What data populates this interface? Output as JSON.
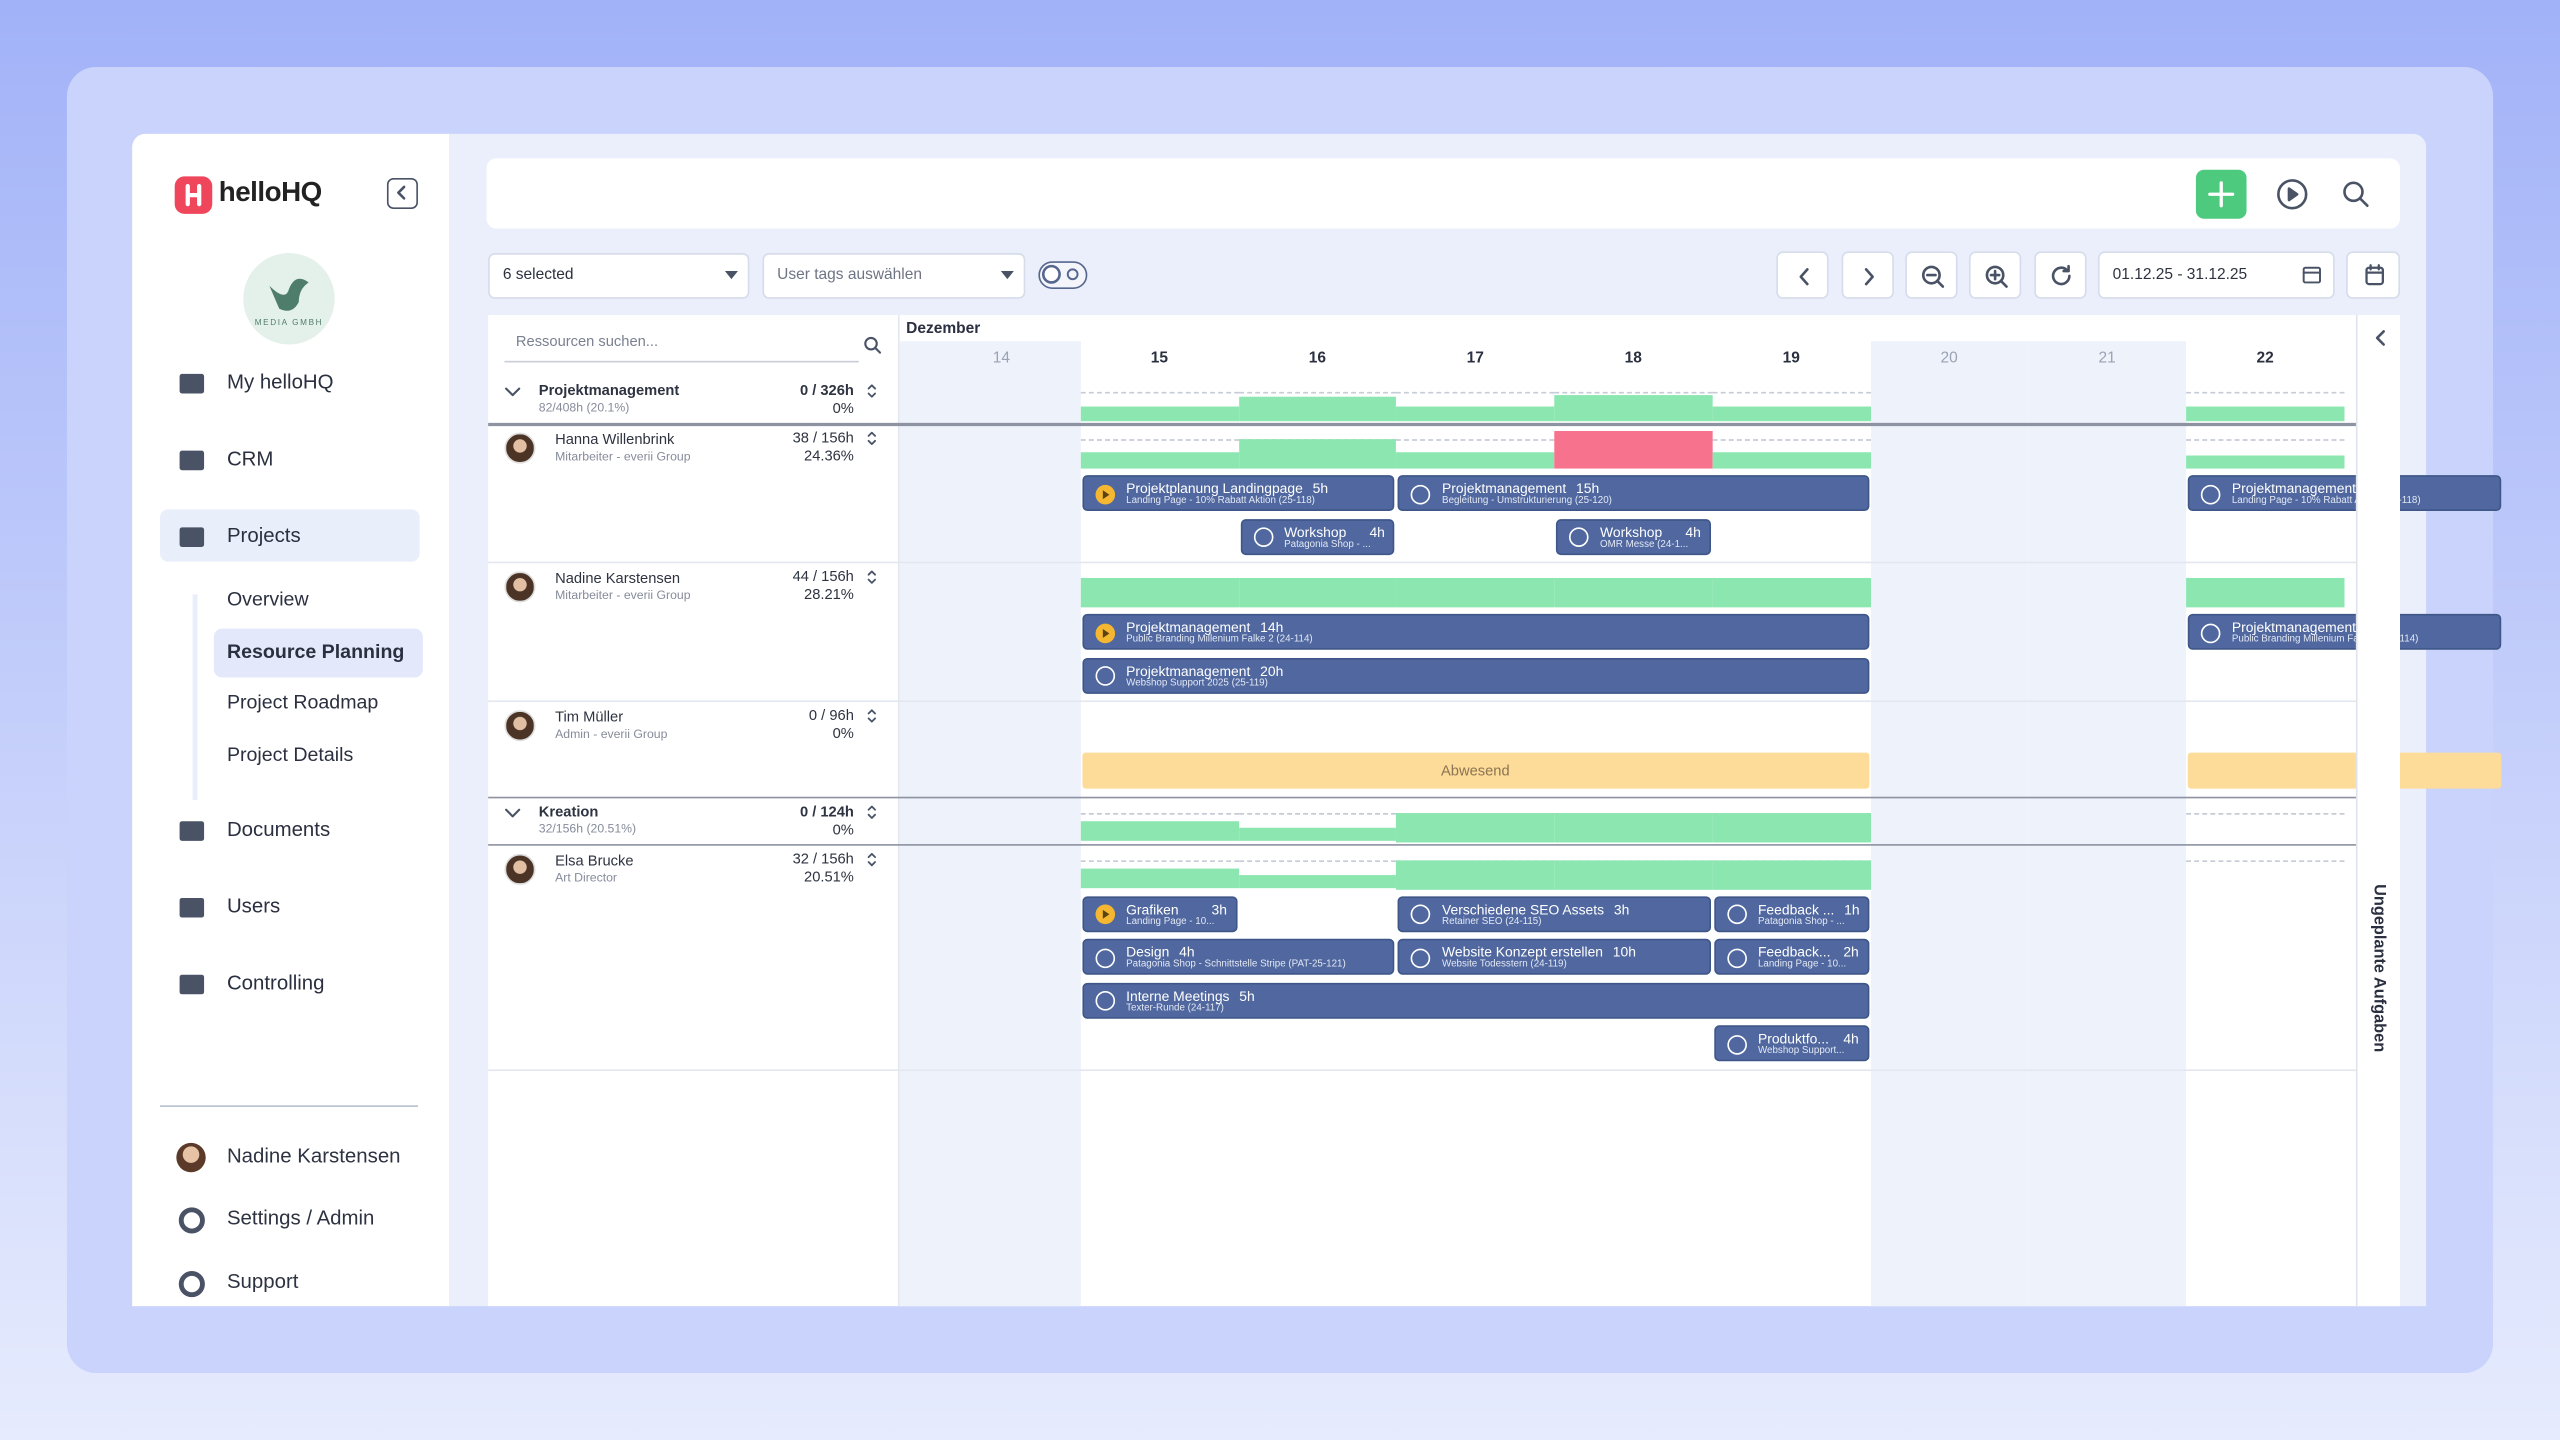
{
  "sidebar": {
    "brand": "helloHQ",
    "company_logo": "MEDIA GMBH",
    "nav": [
      {
        "label": "My helloHQ"
      },
      {
        "label": "CRM"
      },
      {
        "label": "Projects",
        "active": true,
        "children": [
          {
            "label": "Overview"
          },
          {
            "label": "Resource Planning",
            "active": true
          },
          {
            "label": "Project Roadmap"
          },
          {
            "label": "Project Details"
          }
        ]
      },
      {
        "label": "Documents"
      },
      {
        "label": "Users"
      },
      {
        "label": "Controlling"
      }
    ],
    "user": "Nadine Karstensen",
    "footer": [
      "Settings / Admin",
      "Support"
    ]
  },
  "toolbar": {
    "resource_filter": "6 selected",
    "tag_filter": "User tags auswählen",
    "date_range": "01.12.25 - 31.12.25"
  },
  "planner": {
    "search_placeholder": "Ressourcen suchen...",
    "month": "Dezember",
    "side_panel": "Ungeplante Aufgaben",
    "days": [
      {
        "label": "14",
        "weekend": true
      },
      {
        "label": "15"
      },
      {
        "label": "16"
      },
      {
        "label": "17"
      },
      {
        "label": "18"
      },
      {
        "label": "19"
      },
      {
        "label": "20",
        "weekend": true
      },
      {
        "label": "21",
        "weekend": true
      },
      {
        "label": "22"
      }
    ],
    "rows": [
      {
        "kind": "group",
        "name": "Projektmanagement",
        "summary": "82/408h (20.1%)",
        "hours": "0 / 326h",
        "percent": "0%",
        "load": [
          null,
          0.5,
          0.85,
          0.5,
          0.9,
          0.5,
          null,
          null,
          0.5
        ]
      },
      {
        "kind": "person",
        "name": "Hanna Willenbrink",
        "role": "Mitarbeiter - everii Group",
        "hours": "38 / 156h",
        "percent": "24.36%",
        "load": [
          null,
          0.55,
          1.0,
          0.55,
          1.3,
          0.55,
          null,
          null,
          0.45
        ],
        "lines": [
          [
            {
              "title": "Projektplanung Landingpage",
              "hours": "5h",
              "sub": "Landing Page - 10% Rabatt Aktion (25-118)",
              "day": 1,
              "span": 2,
              "running": true
            },
            {
              "title": "Projektmanagement",
              "hours": "15h",
              "sub": "Begleitung - Umstrukturierung (25-120)",
              "day": 3,
              "span": 3
            },
            {
              "title": "Projektmanagement",
              "sub": "Landing Page - 10% Rabatt Aktion (25-118)",
              "day": 8,
              "span": 2
            }
          ],
          [
            {
              "title": "Workshop",
              "hours": "4h",
              "sub": "Patagonia Shop - ...",
              "day": 2,
              "span": 1
            },
            {
              "title": "Workshop",
              "hours": "4h",
              "sub": "OMR Messe (24-1...",
              "day": 4,
              "span": 1
            }
          ]
        ]
      },
      {
        "kind": "person",
        "name": "Nadine Karstensen",
        "role": "Mitarbeiter - everii Group",
        "hours": "44 / 156h",
        "percent": "28.21%",
        "load": [
          null,
          1.0,
          1.0,
          1.0,
          1.0,
          1.0,
          null,
          null,
          1.0
        ],
        "lines": [
          [
            {
              "title": "Projektmanagement",
              "hours": "14h",
              "sub": "Public Branding Millenium Falke 2 (24-114)",
              "day": 1,
              "span": 5,
              "running": true
            },
            {
              "title": "Projektmanagement",
              "sub": "Public Branding Millenium Falke 2 (24-114)",
              "day": 8,
              "span": 2
            }
          ],
          [
            {
              "title": "Projektmanagement",
              "hours": "20h",
              "sub": "Webshop Support 2025 (25-119)",
              "day": 1,
              "span": 5
            }
          ]
        ]
      },
      {
        "kind": "person",
        "name": "Tim Müller",
        "role": "Admin - everii Group",
        "hours": "0 / 96h",
        "percent": "0%",
        "load": [
          null,
          null,
          null,
          null,
          null,
          null,
          null,
          null,
          null
        ],
        "lines": [
          [
            {
              "title": "Abwesend",
              "absent": true,
              "day": 1,
              "span": 5
            },
            {
              "absent": true,
              "day": 8,
              "span": 2
            }
          ]
        ]
      },
      {
        "kind": "group",
        "name": "Kreation",
        "summary": "32/156h (20.51%)",
        "hours": "0 / 124h",
        "percent": "0%",
        "load": [
          null,
          0.7,
          0.45,
          1.0,
          1.0,
          1.0,
          null,
          null,
          0
        ]
      },
      {
        "kind": "person",
        "name": "Elsa Brucke",
        "role": "Art Director",
        "hours": "32 / 156h",
        "percent": "20.51%",
        "load": [
          null,
          0.7,
          0.45,
          1.0,
          1.0,
          1.0,
          null,
          null,
          0
        ],
        "lines": [
          [
            {
              "title": "Grafiken",
              "hours": "3h",
              "sub": "Landing Page - 10...",
              "day": 1,
              "span": 1,
              "running": true
            },
            {
              "title": "Verschiedene SEO Assets",
              "hours": "3h",
              "sub": "Retainer SEO (24-115)",
              "day": 3,
              "span": 2
            },
            {
              "title": "Feedback ...",
              "hours": "1h",
              "sub": "Patagonia Shop - ...",
              "day": 5,
              "span": 1
            }
          ],
          [
            {
              "title": "Design",
              "hours": "4h",
              "sub": "Patagonia Shop - Schnittstelle Stripe (PAT-25-121)",
              "day": 1,
              "span": 2
            },
            {
              "title": "Website Konzept erstellen",
              "hours": "10h",
              "sub": "Website Todesstern (24-119)",
              "day": 3,
              "span": 2
            },
            {
              "title": "Feedback...",
              "hours": "2h",
              "sub": "Landing Page - 10...",
              "day": 5,
              "span": 1
            }
          ],
          [
            {
              "title": "Interne Meetings",
              "hours": "5h",
              "sub": "Texter-Runde (24-117)",
              "day": 1,
              "span": 5
            }
          ],
          [
            {
              "title": "Produktfo...",
              "hours": "4h",
              "sub": "Webshop Support...",
              "day": 5,
              "span": 1
            }
          ]
        ]
      }
    ]
  }
}
